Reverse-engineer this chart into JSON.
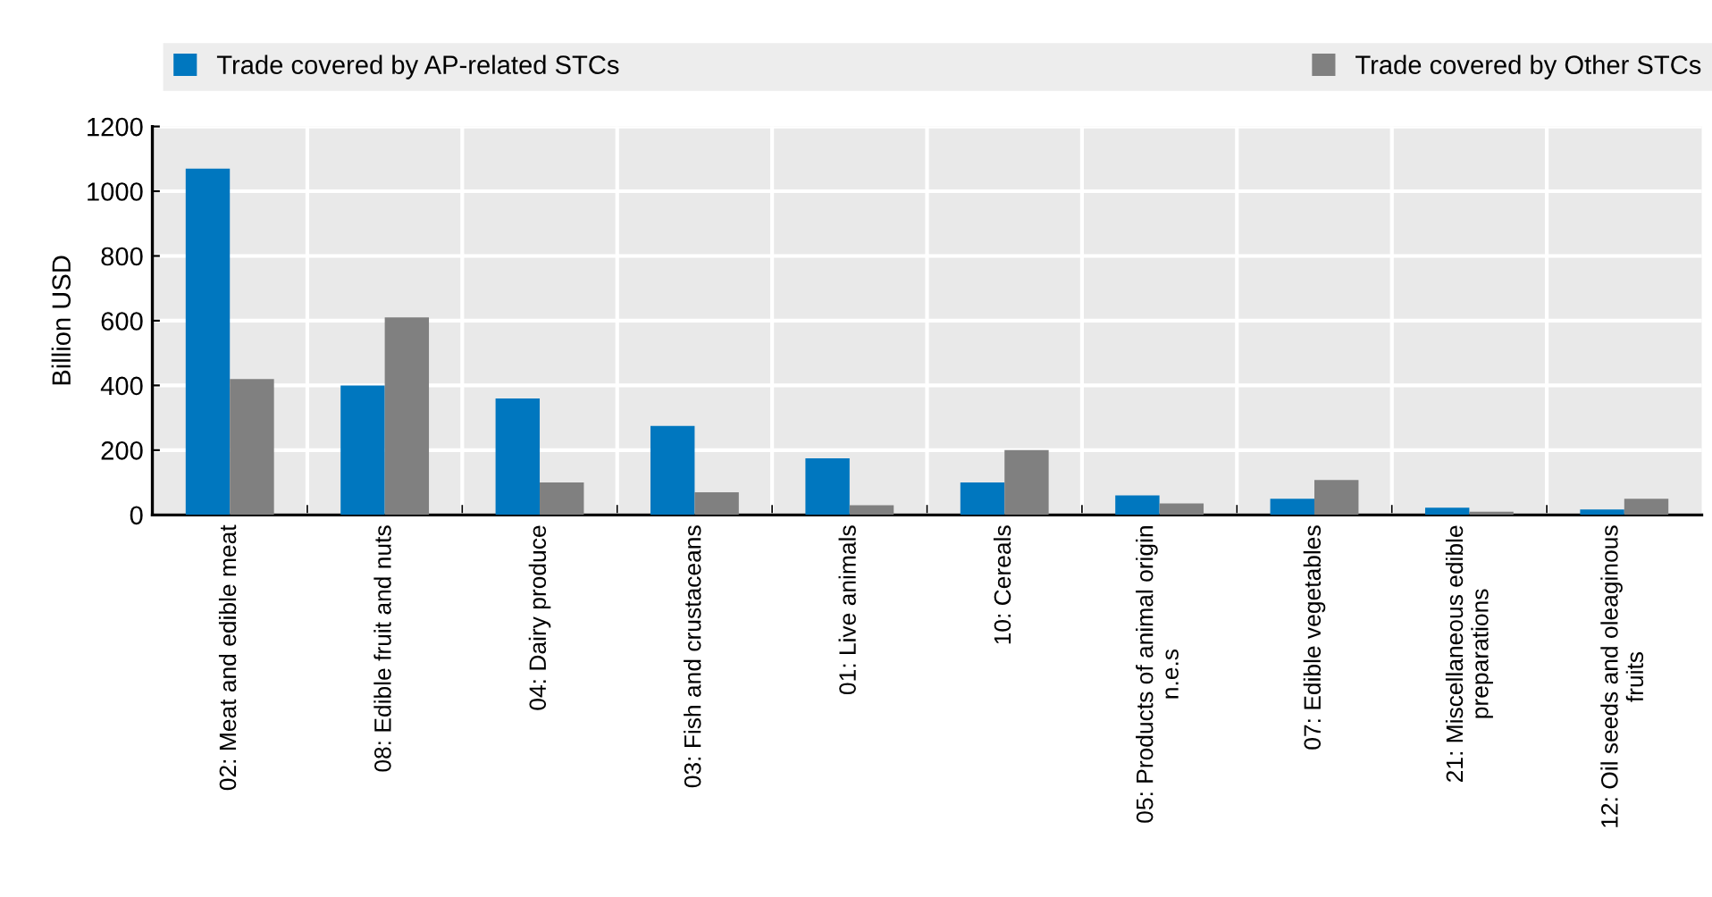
{
  "chart_data": {
    "type": "bar",
    "categories": [
      "02: Meat and edible meat",
      "08: Edible fruit and nuts",
      "04: Dairy produce",
      "03: Fish and crustaceans",
      "01: Live animals",
      "10: Cereals",
      "05: Products of animal origin\nn.e.s",
      "07: Edible vegetables",
      "21: Miscellaneous edible\npreparations",
      "12: Oil seeds and oleaginous\nfruits"
    ],
    "series": [
      {
        "name": "Trade covered by AP-related STCs",
        "color": "#0077bf",
        "values": [
          1070,
          400,
          360,
          275,
          175,
          100,
          60,
          50,
          22,
          17
        ]
      },
      {
        "name": "Trade covered by Other STCs",
        "color": "#808080",
        "values": [
          420,
          610,
          100,
          70,
          30,
          200,
          35,
          108,
          10,
          50
        ]
      }
    ],
    "ylabel": "Billion USD",
    "ylim": [
      0,
      1200
    ],
    "yticks": [
      0,
      200,
      400,
      600,
      800,
      1000,
      1200
    ],
    "grid": true,
    "legend": "top"
  }
}
